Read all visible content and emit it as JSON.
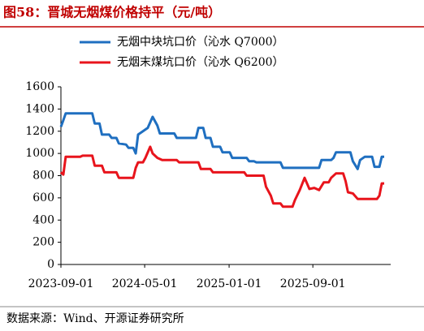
{
  "chart_data": {
    "type": "line",
    "title": "图58：晋城无烟煤价格持平（元/吨）",
    "source": "数据来源：Wind、开源证券研究所",
    "xlim": [
      "2023-09-01",
      "2026-03-27"
    ],
    "xticks": [
      "2023-09-01",
      "2024-05-01",
      "2025-01-01",
      "2025-09-01"
    ],
    "ylim": [
      0,
      1600
    ],
    "yticks": [
      0,
      200,
      400,
      600,
      800,
      1000,
      1200,
      1400,
      1600
    ],
    "legend": "top-left",
    "series": [
      {
        "name": "无烟中块坑口价（沁水 Q7000）",
        "color": "#1f6fc0",
        "x": [
          "2023-09-01",
          "2023-09-08",
          "2023-09-15",
          "2023-12-01",
          "2023-12-08",
          "2023-12-22",
          "2023-12-29",
          "2024-01-19",
          "2024-01-26",
          "2024-02-09",
          "2024-02-16",
          "2024-03-08",
          "2024-03-15",
          "2024-03-29",
          "2024-04-05",
          "2024-04-12",
          "2024-04-26",
          "2024-05-10",
          "2024-05-24",
          "2024-06-07",
          "2024-06-14",
          "2024-07-26",
          "2024-08-02",
          "2024-09-27",
          "2024-10-04",
          "2024-10-18",
          "2024-10-25",
          "2024-11-08",
          "2024-11-15",
          "2024-12-06",
          "2024-12-13",
          "2025-01-03",
          "2025-01-10",
          "2025-02-21",
          "2025-02-28",
          "2025-03-14",
          "2025-03-21",
          "2025-05-30",
          "2025-06-06",
          "2025-09-19",
          "2025-09-26",
          "2025-10-24",
          "2025-10-31",
          "2025-11-07",
          "2025-12-19",
          "2025-12-26",
          "2026-01-09",
          "2026-01-16",
          "2026-01-30",
          "2026-02-20",
          "2026-02-27",
          "2026-03-13",
          "2026-03-20",
          "2026-03-27"
        ],
        "values": [
          1240,
          1300,
          1360,
          1360,
          1270,
          1270,
          1170,
          1170,
          1140,
          1140,
          1090,
          1080,
          1050,
          1050,
          1000,
          1170,
          1200,
          1230,
          1330,
          1250,
          1180,
          1180,
          1140,
          1140,
          1230,
          1230,
          1140,
          1140,
          1060,
          1060,
          1010,
          1010,
          960,
          960,
          930,
          930,
          920,
          920,
          870,
          870,
          940,
          940,
          960,
          1010,
          1010,
          930,
          860,
          940,
          970,
          970,
          880,
          880,
          970,
          970
        ]
      },
      {
        "name": "无烟末煤坑口价（沁水 Q6200）",
        "color": "#e8141c",
        "x": [
          "2023-09-01",
          "2023-09-08",
          "2023-09-15",
          "2023-10-27",
          "2023-11-03",
          "2023-12-01",
          "2023-12-08",
          "2023-12-29",
          "2024-01-05",
          "2024-02-09",
          "2024-02-16",
          "2024-03-29",
          "2024-04-05",
          "2024-04-12",
          "2024-04-26",
          "2024-05-03",
          "2024-05-17",
          "2024-05-24",
          "2024-06-07",
          "2024-06-21",
          "2024-08-02",
          "2024-08-09",
          "2024-10-04",
          "2024-10-11",
          "2024-11-08",
          "2024-11-15",
          "2025-02-14",
          "2025-02-21",
          "2025-04-11",
          "2025-04-18",
          "2025-05-02",
          "2025-05-09",
          "2025-05-30",
          "2025-06-06",
          "2025-07-04",
          "2025-07-11",
          "2025-07-25",
          "2025-08-08",
          "2025-08-22",
          "2025-09-05",
          "2025-09-19",
          "2025-10-03",
          "2025-10-17",
          "2025-10-24",
          "2025-11-07",
          "2025-11-28",
          "2025-12-05",
          "2025-12-12",
          "2025-12-26",
          "2026-01-09",
          "2026-03-06",
          "2026-03-13",
          "2026-03-20",
          "2026-03-27"
        ],
        "values": [
          830,
          810,
          970,
          970,
          980,
          980,
          890,
          890,
          830,
          830,
          780,
          780,
          870,
          920,
          920,
          960,
          1060,
          1000,
          960,
          940,
          940,
          920,
          920,
          860,
          860,
          830,
          830,
          800,
          800,
          700,
          620,
          550,
          550,
          520,
          520,
          580,
          670,
          780,
          680,
          690,
          670,
          740,
          740,
          780,
          820,
          820,
          750,
          650,
          640,
          590,
          590,
          620,
          730,
          730
        ]
      }
    ]
  }
}
